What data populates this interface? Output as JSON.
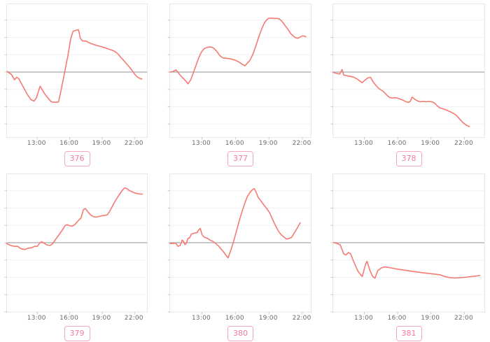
{
  "page": {
    "background": "#ffffff"
  },
  "colors": {
    "line": "#f57b72",
    "zero_line": "#a8a8a8",
    "gridline": "#f1f1f1",
    "plot_border": "#e7e7e7",
    "axis_tick": "#c9c9c9",
    "axis_label": "#6b6b6b",
    "badge_text": "#f07ca4",
    "badge_border": "#f6a8c0"
  },
  "chart_data": [
    {
      "type": "line",
      "badge": "376",
      "title": "",
      "xlabel": "",
      "ylabel": "",
      "line_color": "#f57b72",
      "legend": "none",
      "grid": "horizontal-faint",
      "zero_line": 0,
      "x_tick_hours": [
        13,
        16,
        19,
        22
      ],
      "x_tick_labels": [
        "13:00",
        "16:00",
        "19:00",
        "22:00"
      ],
      "x_range": [
        10.2,
        23.15
      ],
      "ylim": [
        -3.76,
        3.92
      ],
      "points": [
        [
          10.22,
          0.03
        ],
        [
          10.63,
          -0.15
        ],
        [
          10.89,
          -0.45
        ],
        [
          11.1,
          -0.3
        ],
        [
          11.31,
          -0.4
        ],
        [
          11.69,
          -0.85
        ],
        [
          12.06,
          -1.27
        ],
        [
          12.42,
          -1.6
        ],
        [
          12.7,
          -1.68
        ],
        [
          12.91,
          -1.5
        ],
        [
          13.26,
          -0.82
        ],
        [
          13.68,
          -1.25
        ],
        [
          14.07,
          -1.57
        ],
        [
          14.32,
          -1.73
        ],
        [
          14.71,
          -1.75
        ],
        [
          14.96,
          -1.73
        ],
        [
          15.18,
          -1.13
        ],
        [
          15.52,
          -0.05
        ],
        [
          15.82,
          0.9
        ],
        [
          16.1,
          1.93
        ],
        [
          16.31,
          2.36
        ],
        [
          16.53,
          2.4
        ],
        [
          16.81,
          2.45
        ],
        [
          16.98,
          1.96
        ],
        [
          17.17,
          1.8
        ],
        [
          17.49,
          1.79
        ],
        [
          17.81,
          1.69
        ],
        [
          18.13,
          1.61
        ],
        [
          18.52,
          1.53
        ],
        [
          18.9,
          1.47
        ],
        [
          19.25,
          1.4
        ],
        [
          19.59,
          1.33
        ],
        [
          19.89,
          1.27
        ],
        [
          20.17,
          1.19
        ],
        [
          20.45,
          1.05
        ],
        [
          20.7,
          0.87
        ],
        [
          20.96,
          0.69
        ],
        [
          21.24,
          0.49
        ],
        [
          21.52,
          0.29
        ],
        [
          21.77,
          0.09
        ],
        [
          21.99,
          -0.11
        ],
        [
          22.24,
          -0.28
        ],
        [
          22.48,
          -0.37
        ],
        [
          22.69,
          -0.41
        ]
      ]
    },
    {
      "type": "line",
      "badge": "377",
      "title": "",
      "xlabel": "",
      "ylabel": "",
      "line_color": "#f57b72",
      "legend": "none",
      "grid": "horizontal-faint",
      "zero_line": 0,
      "x_tick_hours": [
        13,
        16,
        19,
        22
      ],
      "x_tick_labels": [
        "13:00",
        "16:00",
        "19:00",
        "22:00"
      ],
      "x_range": [
        10.15,
        22.75
      ],
      "ylim": [
        -3.76,
        3.92
      ],
      "points": [
        [
          10.15,
          0.0
        ],
        [
          10.45,
          0.04
        ],
        [
          10.68,
          0.12
        ],
        [
          10.95,
          -0.1
        ],
        [
          11.2,
          -0.28
        ],
        [
          11.5,
          -0.48
        ],
        [
          11.76,
          -0.68
        ],
        [
          12.0,
          -0.45
        ],
        [
          12.2,
          -0.1
        ],
        [
          12.45,
          0.35
        ],
        [
          12.7,
          0.8
        ],
        [
          12.95,
          1.15
        ],
        [
          13.2,
          1.35
        ],
        [
          13.45,
          1.42
        ],
        [
          13.7,
          1.45
        ],
        [
          13.95,
          1.42
        ],
        [
          14.15,
          1.32
        ],
        [
          14.35,
          1.18
        ],
        [
          14.6,
          0.95
        ],
        [
          14.85,
          0.82
        ],
        [
          15.1,
          0.8
        ],
        [
          15.4,
          0.78
        ],
        [
          15.7,
          0.74
        ],
        [
          16.0,
          0.68
        ],
        [
          16.3,
          0.58
        ],
        [
          16.6,
          0.45
        ],
        [
          16.85,
          0.36
        ],
        [
          17.05,
          0.5
        ],
        [
          17.3,
          0.68
        ],
        [
          17.55,
          1.0
        ],
        [
          17.8,
          1.45
        ],
        [
          18.05,
          1.95
        ],
        [
          18.3,
          2.4
        ],
        [
          18.55,
          2.78
        ],
        [
          18.75,
          2.98
        ],
        [
          18.95,
          3.1
        ],
        [
          19.2,
          3.12
        ],
        [
          19.45,
          3.1
        ],
        [
          19.7,
          3.1
        ],
        [
          19.9,
          3.08
        ],
        [
          20.1,
          2.98
        ],
        [
          20.3,
          2.82
        ],
        [
          20.55,
          2.6
        ],
        [
          20.75,
          2.42
        ],
        [
          20.95,
          2.22
        ],
        [
          21.15,
          2.1
        ],
        [
          21.35,
          2.0
        ],
        [
          21.55,
          1.95
        ],
        [
          21.75,
          2.0
        ],
        [
          21.95,
          2.08
        ],
        [
          22.15,
          2.08
        ],
        [
          22.3,
          2.04
        ]
      ]
    },
    {
      "type": "line",
      "badge": "378",
      "title": "",
      "xlabel": "",
      "ylabel": "",
      "line_color": "#f57b72",
      "legend": "none",
      "grid": "horizontal-faint",
      "zero_line": 0,
      "x_tick_hours": [
        13,
        16,
        19,
        22
      ],
      "x_tick_labels": [
        "13:00",
        "16:00",
        "19:00",
        "22:00"
      ],
      "x_range": [
        10.2,
        23.8
      ],
      "ylim": [
        -3.76,
        3.92
      ],
      "points": [
        [
          10.2,
          -0.02
        ],
        [
          10.5,
          -0.08
        ],
        [
          10.8,
          -0.12
        ],
        [
          11.0,
          0.15
        ],
        [
          11.15,
          -0.18
        ],
        [
          11.45,
          -0.22
        ],
        [
          11.75,
          -0.25
        ],
        [
          12.05,
          -0.3
        ],
        [
          12.35,
          -0.4
        ],
        [
          12.6,
          -0.52
        ],
        [
          12.8,
          -0.62
        ],
        [
          13.0,
          -0.5
        ],
        [
          13.3,
          -0.35
        ],
        [
          13.55,
          -0.3
        ],
        [
          13.8,
          -0.58
        ],
        [
          14.05,
          -0.78
        ],
        [
          14.3,
          -0.95
        ],
        [
          14.55,
          -1.05
        ],
        [
          14.8,
          -1.18
        ],
        [
          15.05,
          -1.35
        ],
        [
          15.3,
          -1.48
        ],
        [
          15.55,
          -1.5
        ],
        [
          15.8,
          -1.48
        ],
        [
          16.05,
          -1.52
        ],
        [
          16.3,
          -1.58
        ],
        [
          16.55,
          -1.65
        ],
        [
          16.8,
          -1.73
        ],
        [
          17.0,
          -1.75
        ],
        [
          17.15,
          -1.68
        ],
        [
          17.3,
          -1.45
        ],
        [
          17.55,
          -1.58
        ],
        [
          17.8,
          -1.68
        ],
        [
          18.05,
          -1.72
        ],
        [
          18.3,
          -1.7
        ],
        [
          18.55,
          -1.72
        ],
        [
          18.8,
          -1.7
        ],
        [
          19.05,
          -1.72
        ],
        [
          19.3,
          -1.78
        ],
        [
          19.55,
          -1.95
        ],
        [
          19.8,
          -2.08
        ],
        [
          20.05,
          -2.12
        ],
        [
          20.3,
          -2.18
        ],
        [
          20.55,
          -2.25
        ],
        [
          20.8,
          -2.32
        ],
        [
          21.05,
          -2.4
        ],
        [
          21.3,
          -2.52
        ],
        [
          21.55,
          -2.7
        ],
        [
          21.8,
          -2.88
        ],
        [
          22.05,
          -3.02
        ],
        [
          22.25,
          -3.1
        ],
        [
          22.45,
          -3.15
        ]
      ]
    },
    {
      "type": "line",
      "badge": "379",
      "title": "",
      "xlabel": "",
      "ylabel": "",
      "line_color": "#f57b72",
      "legend": "none",
      "grid": "horizontal-faint",
      "zero_line": 0,
      "x_tick_hours": [
        13,
        16,
        19,
        22
      ],
      "x_tick_labels": [
        "13:00",
        "16:00",
        "19:00",
        "22:00"
      ],
      "x_range": [
        10.2,
        23.15
      ],
      "ylim": [
        -4.0,
        3.96
      ],
      "points": [
        [
          10.15,
          -0.05
        ],
        [
          10.54,
          -0.16
        ],
        [
          10.86,
          -0.21
        ],
        [
          11.18,
          -0.21
        ],
        [
          11.5,
          -0.35
        ],
        [
          11.83,
          -0.39
        ],
        [
          12.15,
          -0.32
        ],
        [
          12.47,
          -0.29
        ],
        [
          12.74,
          -0.21
        ],
        [
          13.0,
          -0.21
        ],
        [
          13.26,
          0.01
        ],
        [
          13.43,
          0.05
        ],
        [
          13.64,
          -0.03
        ],
        [
          13.86,
          -0.12
        ],
        [
          14.18,
          -0.16
        ],
        [
          14.39,
          -0.08
        ],
        [
          14.71,
          0.21
        ],
        [
          15.04,
          0.48
        ],
        [
          15.31,
          0.72
        ],
        [
          15.57,
          0.99
        ],
        [
          15.79,
          1.04
        ],
        [
          15.95,
          0.99
        ],
        [
          16.21,
          0.95
        ],
        [
          16.47,
          1.04
        ],
        [
          16.75,
          1.25
        ],
        [
          17.03,
          1.41
        ],
        [
          17.28,
          1.92
        ],
        [
          17.46,
          1.97
        ],
        [
          17.67,
          1.79
        ],
        [
          17.93,
          1.61
        ],
        [
          18.14,
          1.52
        ],
        [
          18.4,
          1.48
        ],
        [
          18.68,
          1.51
        ],
        [
          18.95,
          1.55
        ],
        [
          19.21,
          1.57
        ],
        [
          19.47,
          1.61
        ],
        [
          19.68,
          1.79
        ],
        [
          19.9,
          2.05
        ],
        [
          20.17,
          2.37
        ],
        [
          20.45,
          2.64
        ],
        [
          20.67,
          2.85
        ],
        [
          20.88,
          3.04
        ],
        [
          21.09,
          3.17
        ],
        [
          21.31,
          3.12
        ],
        [
          21.52,
          3.01
        ],
        [
          21.73,
          2.95
        ],
        [
          21.99,
          2.88
        ],
        [
          22.25,
          2.84
        ],
        [
          22.53,
          2.81
        ],
        [
          22.74,
          2.81
        ]
      ]
    },
    {
      "type": "line",
      "badge": "380",
      "title": "",
      "xlabel": "",
      "ylabel": "",
      "line_color": "#f57b72",
      "legend": "none",
      "grid": "horizontal-faint",
      "zero_line": 0,
      "x_tick_hours": [
        13,
        16,
        19,
        22
      ],
      "x_tick_labels": [
        "13:00",
        "16:00",
        "19:00",
        "22:00"
      ],
      "x_range": [
        10.15,
        22.75
      ],
      "ylim": [
        -4.0,
        3.96
      ],
      "points": [
        [
          10.14,
          -0.05
        ],
        [
          10.4,
          -0.05
        ],
        [
          10.65,
          -0.03
        ],
        [
          10.86,
          -0.21
        ],
        [
          11.06,
          -0.16
        ],
        [
          11.23,
          0.15
        ],
        [
          11.35,
          0.08
        ],
        [
          11.48,
          -0.11
        ],
        [
          11.6,
          -0.05
        ],
        [
          11.75,
          0.24
        ],
        [
          11.89,
          0.28
        ],
        [
          12.06,
          0.5
        ],
        [
          12.31,
          0.55
        ],
        [
          12.56,
          0.58
        ],
        [
          12.72,
          0.74
        ],
        [
          12.85,
          0.83
        ],
        [
          13.01,
          0.47
        ],
        [
          13.2,
          0.32
        ],
        [
          13.47,
          0.26
        ],
        [
          13.72,
          0.15
        ],
        [
          13.97,
          0.08
        ],
        [
          14.24,
          -0.05
        ],
        [
          14.51,
          -0.21
        ],
        [
          14.76,
          -0.4
        ],
        [
          14.97,
          -0.56
        ],
        [
          15.17,
          -0.74
        ],
        [
          15.34,
          -0.88
        ],
        [
          15.59,
          -0.43
        ],
        [
          15.84,
          0.08
        ],
        [
          16.11,
          0.72
        ],
        [
          16.38,
          1.35
        ],
        [
          16.63,
          1.88
        ],
        [
          16.88,
          2.35
        ],
        [
          17.08,
          2.68
        ],
        [
          17.35,
          2.95
        ],
        [
          17.56,
          3.08
        ],
        [
          17.7,
          3.12
        ],
        [
          17.87,
          2.88
        ],
        [
          18.04,
          2.61
        ],
        [
          18.29,
          2.41
        ],
        [
          18.54,
          2.19
        ],
        [
          18.81,
          1.97
        ],
        [
          19.08,
          1.71
        ],
        [
          19.32,
          1.35
        ],
        [
          19.57,
          1.01
        ],
        [
          19.84,
          0.68
        ],
        [
          20.11,
          0.45
        ],
        [
          20.36,
          0.32
        ],
        [
          20.57,
          0.21
        ],
        [
          20.82,
          0.25
        ],
        [
          21.02,
          0.3
        ],
        [
          21.29,
          0.58
        ],
        [
          21.56,
          0.87
        ],
        [
          21.8,
          1.15
        ]
      ]
    },
    {
      "type": "line",
      "badge": "381",
      "title": "",
      "xlabel": "",
      "ylabel": "",
      "line_color": "#f57b72",
      "legend": "none",
      "grid": "horizontal-faint",
      "zero_line": 0,
      "x_tick_hours": [
        13,
        16,
        19,
        22
      ],
      "x_tick_labels": [
        "13:00",
        "16:00",
        "19:00",
        "22:00"
      ],
      "x_range": [
        10.2,
        23.8
      ],
      "ylim": [
        -4.0,
        3.96
      ],
      "points": [
        [
          10.25,
          0.01
        ],
        [
          10.52,
          -0.04
        ],
        [
          10.83,
          -0.12
        ],
        [
          11.15,
          -0.65
        ],
        [
          11.35,
          -0.71
        ],
        [
          11.56,
          -0.57
        ],
        [
          11.77,
          -0.65
        ],
        [
          12.08,
          -1.15
        ],
        [
          12.4,
          -1.61
        ],
        [
          12.67,
          -1.85
        ],
        [
          12.81,
          -1.95
        ],
        [
          12.96,
          -1.61
        ],
        [
          13.13,
          -1.21
        ],
        [
          13.25,
          -1.08
        ],
        [
          13.5,
          -1.59
        ],
        [
          13.75,
          -1.95
        ],
        [
          13.96,
          -2.05
        ],
        [
          14.21,
          -1.61
        ],
        [
          14.48,
          -1.48
        ],
        [
          14.75,
          -1.4
        ],
        [
          15.0,
          -1.41
        ],
        [
          15.83,
          -1.51
        ],
        [
          16.88,
          -1.61
        ],
        [
          17.92,
          -1.71
        ],
        [
          18.96,
          -1.79
        ],
        [
          19.79,
          -1.85
        ],
        [
          20.21,
          -1.95
        ],
        [
          20.63,
          -2.01
        ],
        [
          21.04,
          -2.04
        ],
        [
          21.56,
          -2.03
        ],
        [
          22.08,
          -2.0
        ],
        [
          22.6,
          -1.96
        ],
        [
          23.13,
          -1.92
        ],
        [
          23.38,
          -1.89
        ]
      ]
    }
  ]
}
